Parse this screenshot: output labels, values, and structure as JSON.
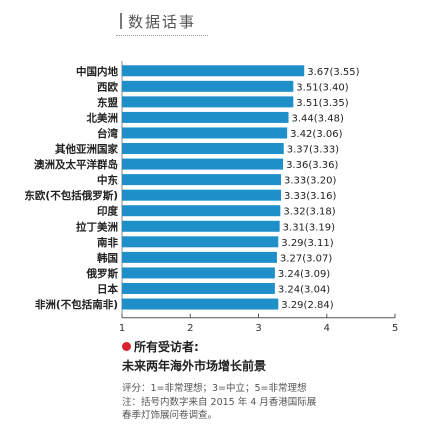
{
  "header": {
    "title": "数据话事"
  },
  "chart_data": {
    "type": "bar",
    "orientation": "horizontal",
    "categories": [
      "中国内地",
      "西欧",
      "东盟",
      "北美洲",
      "台湾",
      "其他亚洲国家",
      "澳洲及太平洋群岛",
      "中东",
      "东欧(不包括俄罗斯)",
      "印度",
      "拉丁美洲",
      "南非",
      "韩国",
      "俄罗斯",
      "日本",
      "非洲(不包括南非)"
    ],
    "values": [
      3.67,
      3.51,
      3.51,
      3.44,
      3.42,
      3.37,
      3.36,
      3.33,
      3.33,
      3.32,
      3.31,
      3.29,
      3.27,
      3.24,
      3.24,
      3.29
    ],
    "value_labels": [
      "3.67(3.55)",
      "3.51(3.40)",
      "3.51(3.35)",
      "3.44(3.48)",
      "3.42(3.06)",
      "3.37(3.33)",
      "3.36(3.36)",
      "3.33(3.20)",
      "3.33(3.16)",
      "3.32(3.18)",
      "3.31(3.19)",
      "3.29(3.11)",
      "3.27(3.07)",
      "3.24(3.09)",
      "3.24(3.04)",
      "3.29(2.84)"
    ],
    "xlim": [
      1,
      5
    ],
    "xticks": [
      "1",
      "2",
      "3",
      "4",
      "5"
    ],
    "bar_color": "#1e8fc9",
    "grid": false
  },
  "notes": {
    "respondents": "所有受访者:",
    "subtitle": "未来两年海外市场增长前景",
    "scale": "评分：1=非常理想；3=中立；5=非常理想",
    "source_line1": "注：括号内数字来自 2015 年 4 月香港国际展",
    "source_line2": "春季灯饰展问卷调查。",
    "dot_color": "#d9232e"
  }
}
